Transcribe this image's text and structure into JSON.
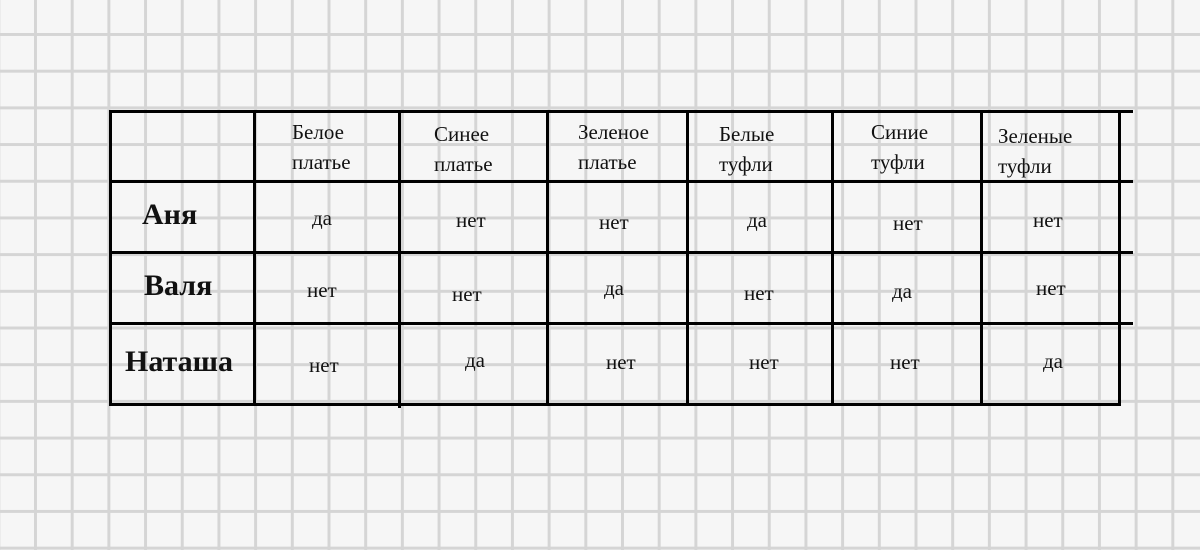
{
  "table": {
    "headers": [
      "Белое платье",
      "Синее платье",
      "Зеленое платье",
      "Белые туфли",
      "Синие туфли",
      "Зеленые туфли"
    ],
    "header_lines": [
      [
        "Белое",
        "платье"
      ],
      [
        "Синее",
        "платье"
      ],
      [
        "Зеленое",
        "платье"
      ],
      [
        "Белые",
        "туфли"
      ],
      [
        "Синие",
        "туфли"
      ],
      [
        "Зеленые",
        "туфли"
      ]
    ],
    "rows": [
      {
        "name": "Аня",
        "values": [
          "да",
          "нет",
          "нет",
          "да",
          "нет",
          "нет"
        ]
      },
      {
        "name": "Валя",
        "values": [
          "нет",
          "нет",
          "да",
          "нет",
          "да",
          "нет"
        ]
      },
      {
        "name": "Наташа",
        "values": [
          "нет",
          "да",
          "нет",
          "нет",
          "нет",
          "да"
        ]
      }
    ]
  }
}
